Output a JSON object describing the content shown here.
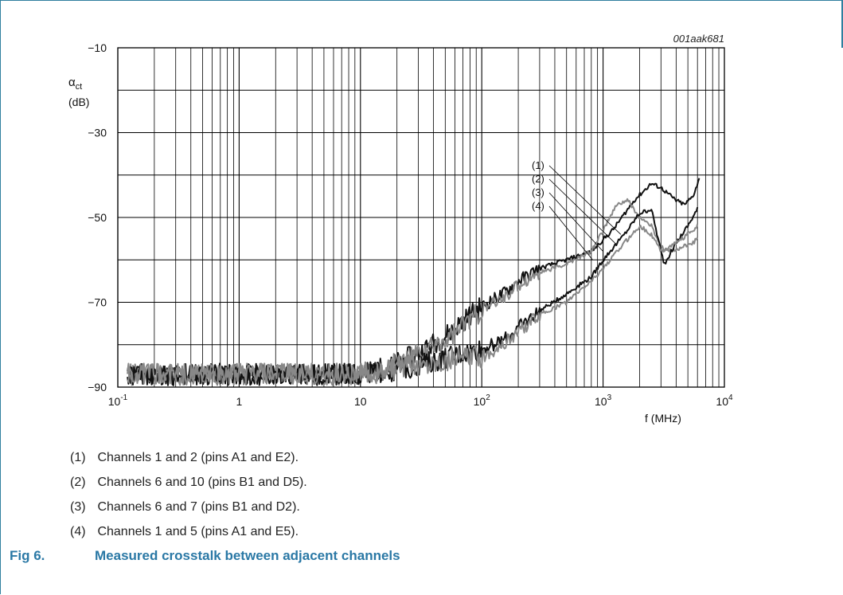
{
  "chart_data": {
    "type": "line",
    "chart_id": "001aak681",
    "ylabel_symbol": "α",
    "ylabel_sub": "ct",
    "yunit": "(dB)",
    "xlabel": "f (MHz)",
    "xscale": "log",
    "xlim": [
      0.1,
      10000
    ],
    "ylim": [
      -90,
      -10
    ],
    "grid": true,
    "y_ticks": [
      "−10",
      "−30",
      "−50",
      "−70",
      "−90"
    ],
    "x_ticks": [
      {
        "base": "10",
        "exp": "-1"
      },
      {
        "base": "1",
        "exp": ""
      },
      {
        "base": "10",
        "exp": ""
      },
      {
        "base": "10",
        "exp": "2"
      },
      {
        "base": "10",
        "exp": "3"
      },
      {
        "base": "10",
        "exp": "4"
      }
    ],
    "series_labels": [
      "(1)",
      "(2)",
      "(3)",
      "(4)"
    ],
    "series": [
      {
        "label": "(1)",
        "color": "#111111",
        "noise": 2.6,
        "points": [
          [
            0.12,
            -87
          ],
          [
            1,
            -87
          ],
          [
            10,
            -87
          ],
          [
            18,
            -85
          ],
          [
            30,
            -82
          ],
          [
            50,
            -78
          ],
          [
            80,
            -73
          ],
          [
            100,
            -71
          ],
          [
            150,
            -68
          ],
          [
            200,
            -65
          ],
          [
            300,
            -62
          ],
          [
            500,
            -60
          ],
          [
            800,
            -58
          ],
          [
            1200,
            -53
          ],
          [
            1800,
            -46
          ],
          [
            2500,
            -42
          ],
          [
            3000,
            -43
          ],
          [
            4000,
            -46
          ],
          [
            4700,
            -47
          ],
          [
            5500,
            -45
          ],
          [
            6200,
            -41
          ]
        ]
      },
      {
        "label": "(2)",
        "color": "#888888",
        "noise": 2.6,
        "points": [
          [
            0.12,
            -87
          ],
          [
            1,
            -87
          ],
          [
            10,
            -87
          ],
          [
            18,
            -85
          ],
          [
            30,
            -82
          ],
          [
            50,
            -79
          ],
          [
            80,
            -74
          ],
          [
            100,
            -72
          ],
          [
            150,
            -69
          ],
          [
            200,
            -66
          ],
          [
            300,
            -63
          ],
          [
            500,
            -61
          ],
          [
            800,
            -58
          ],
          [
            1000,
            -53
          ],
          [
            1300,
            -47
          ],
          [
            1600,
            -46
          ],
          [
            2000,
            -50
          ],
          [
            2500,
            -52
          ],
          [
            3000,
            -57
          ],
          [
            3500,
            -58
          ],
          [
            4500,
            -57
          ],
          [
            5500,
            -56
          ],
          [
            6000,
            -55
          ]
        ]
      },
      {
        "label": "(3)",
        "color": "#111111",
        "noise": 2.6,
        "points": [
          [
            0.12,
            -87
          ],
          [
            1,
            -87
          ],
          [
            10,
            -87
          ],
          [
            20,
            -86
          ],
          [
            40,
            -84
          ],
          [
            70,
            -82
          ],
          [
            100,
            -81
          ],
          [
            150,
            -79
          ],
          [
            200,
            -76
          ],
          [
            300,
            -72
          ],
          [
            500,
            -68
          ],
          [
            800,
            -64
          ],
          [
            1000,
            -60
          ],
          [
            1500,
            -54
          ],
          [
            2000,
            -49
          ],
          [
            2500,
            -48
          ],
          [
            3000,
            -58
          ],
          [
            3200,
            -61
          ],
          [
            4000,
            -56
          ],
          [
            5000,
            -52
          ],
          [
            6000,
            -48
          ]
        ]
      },
      {
        "label": "(4)",
        "color": "#888888",
        "noise": 2.6,
        "points": [
          [
            0.12,
            -87
          ],
          [
            1,
            -87
          ],
          [
            10,
            -87
          ],
          [
            20,
            -86
          ],
          [
            40,
            -84
          ],
          [
            70,
            -83
          ],
          [
            100,
            -83
          ],
          [
            150,
            -80
          ],
          [
            200,
            -77
          ],
          [
            300,
            -73
          ],
          [
            500,
            -70
          ],
          [
            800,
            -65
          ],
          [
            1000,
            -62
          ],
          [
            1500,
            -56
          ],
          [
            2000,
            -52
          ],
          [
            2500,
            -54
          ],
          [
            3000,
            -58
          ],
          [
            3500,
            -57
          ],
          [
            4500,
            -55
          ],
          [
            6000,
            -52
          ]
        ]
      }
    ]
  },
  "legend": [
    {
      "num": "(1)",
      "text": "Channels 1 and 2 (pins A1 and E2)."
    },
    {
      "num": "(2)",
      "text": "Channels 6 and 10 (pins B1 and D5)."
    },
    {
      "num": "(3)",
      "text": "Channels 6 and 7 (pins B1 and D2)."
    },
    {
      "num": "(4)",
      "text": "Channels 1 and 5 (pins A1 and E5)."
    }
  ],
  "caption": {
    "fig": "Fig 6.",
    "title": "Measured crosstalk between adjacent channels"
  }
}
